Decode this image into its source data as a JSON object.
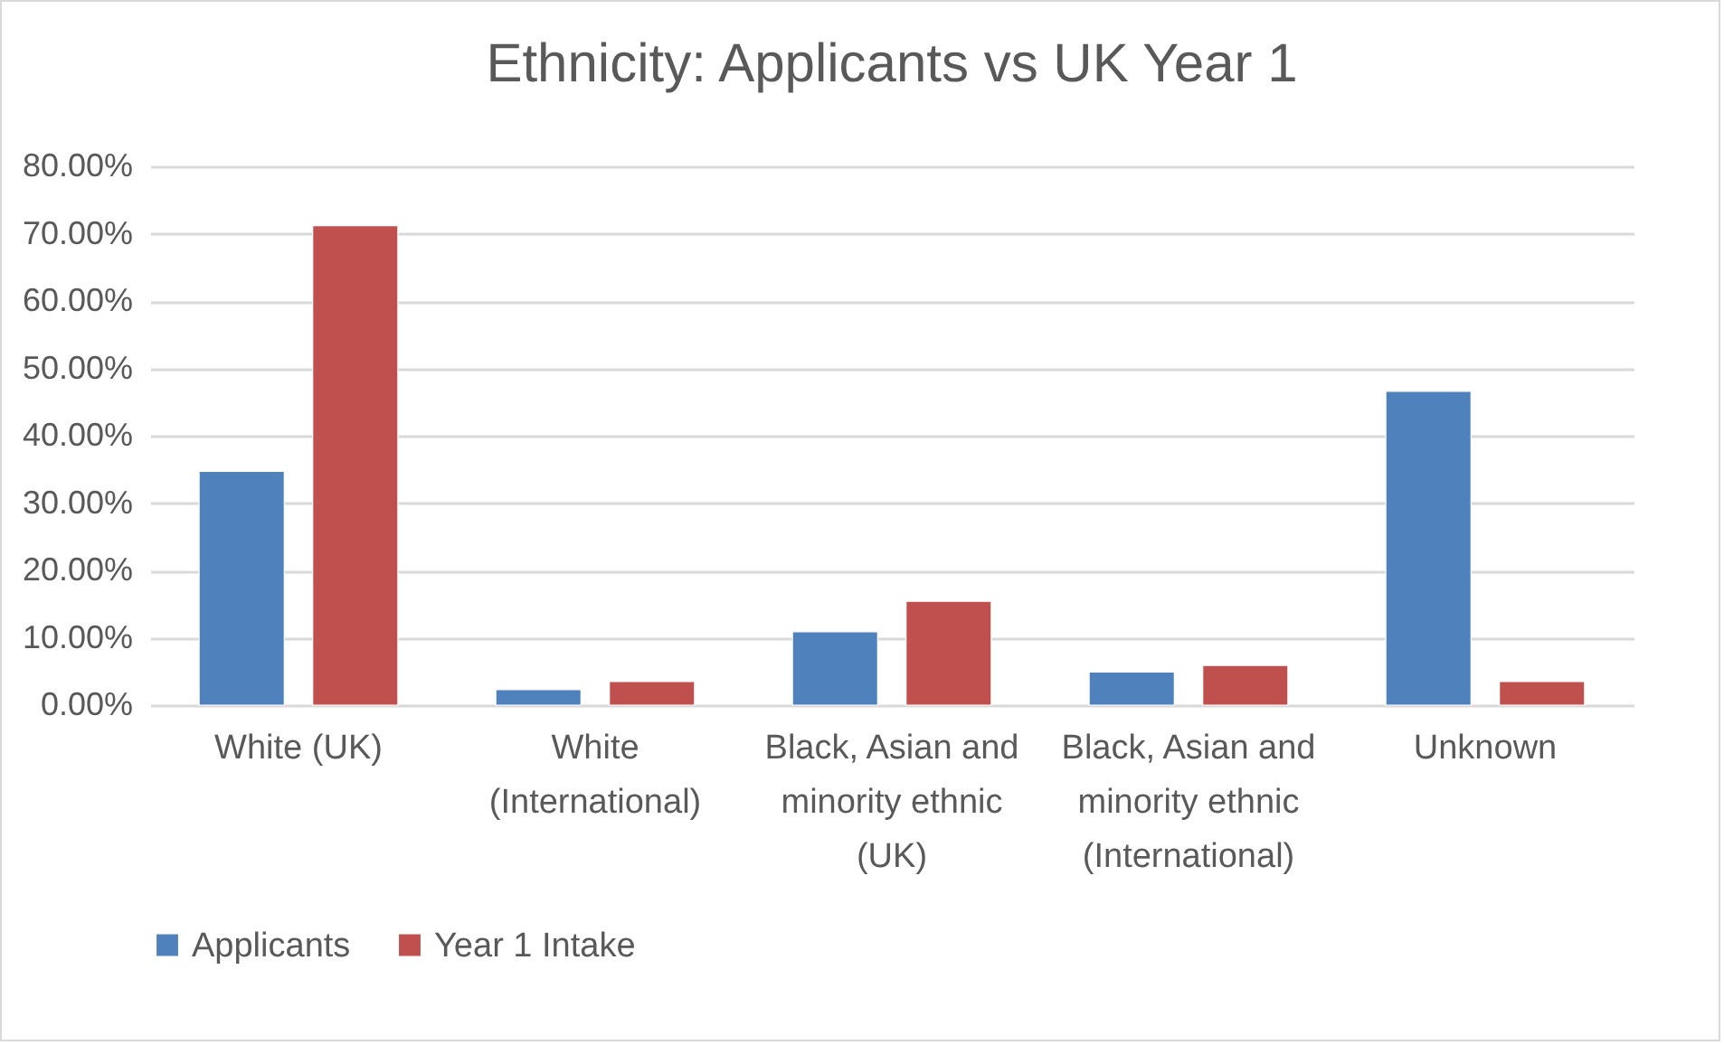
{
  "chart_data": {
    "type": "bar",
    "title": "Ethnicity: Applicants vs UK Year 1",
    "categories": [
      "White (UK)",
      "White (International)",
      "Black, Asian and minority ethnic (UK)",
      "Black, Asian and minority ethnic (International)",
      "Unknown"
    ],
    "series": [
      {
        "name": "Applicants",
        "color": "#4f81bd",
        "values": [
          34.7,
          2.3,
          10.9,
          4.9,
          46.6
        ]
      },
      {
        "name": "Year 1 Intake",
        "color": "#c0504d",
        "values": [
          71.2,
          3.5,
          15.4,
          5.9,
          3.5
        ]
      }
    ],
    "ylim": [
      0,
      80
    ],
    "yticks": [
      {
        "value": 0,
        "label": "0.00%"
      },
      {
        "value": 10,
        "label": "10.00%"
      },
      {
        "value": 20,
        "label": "20.00%"
      },
      {
        "value": 30,
        "label": "30.00%"
      },
      {
        "value": 40,
        "label": "40.00%"
      },
      {
        "value": 50,
        "label": "50.00%"
      },
      {
        "value": 60,
        "label": "60.00%"
      },
      {
        "value": 70,
        "label": "70.00%"
      },
      {
        "value": 80,
        "label": "80.00%"
      }
    ],
    "grid": "y",
    "legend": "bottom"
  }
}
